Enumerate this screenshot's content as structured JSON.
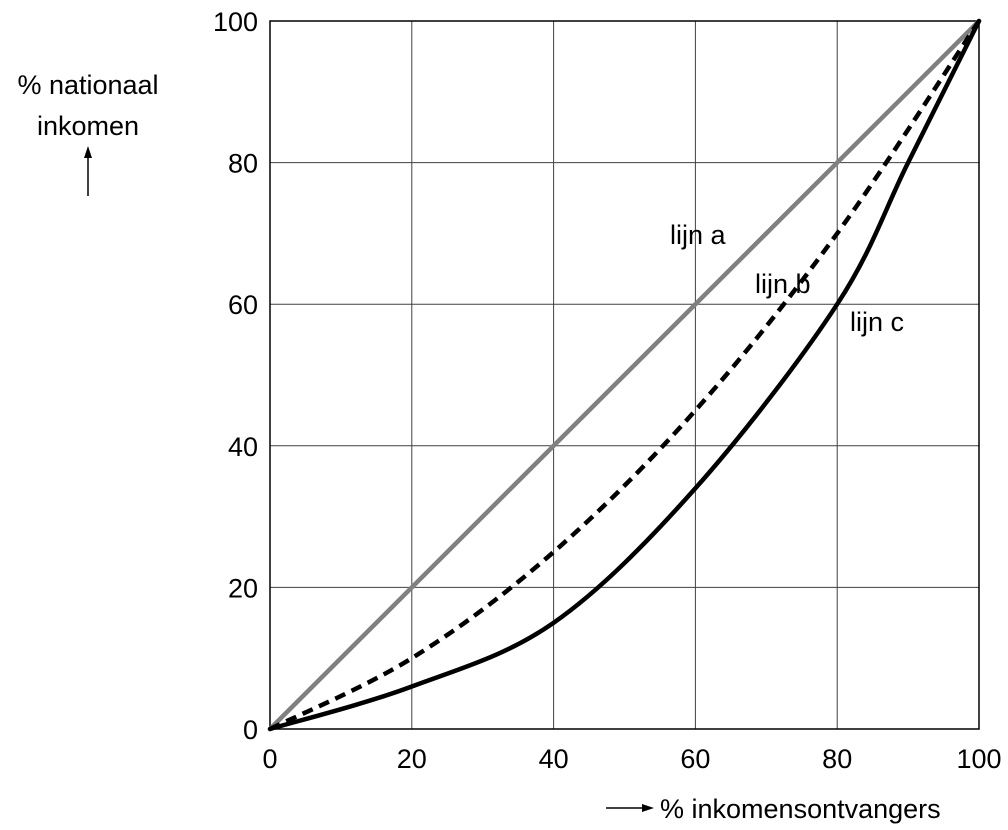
{
  "chart_data": {
    "type": "line",
    "title": "",
    "ylabel_lines": [
      "% nationaal",
      "inkomen"
    ],
    "xlabel": "% inkomensontvangers",
    "xlim": [
      0,
      100
    ],
    "ylim": [
      0,
      100
    ],
    "xticks": [
      0,
      20,
      40,
      60,
      80,
      100
    ],
    "yticks": [
      0,
      20,
      40,
      60,
      80,
      100
    ],
    "grid": true,
    "series": [
      {
        "name": "lijn a",
        "color": "#808080",
        "style": "solid",
        "x": [
          0,
          100
        ],
        "y": [
          0,
          100
        ]
      },
      {
        "name": "lijn b",
        "color": "#000000",
        "style": "dashed",
        "x": [
          0,
          20,
          40,
          60,
          80,
          100
        ],
        "y": [
          0,
          10,
          25,
          45,
          70,
          100
        ]
      },
      {
        "name": "lijn c",
        "color": "#000000",
        "style": "solid",
        "x": [
          0,
          20,
          40,
          60,
          80,
          90,
          100
        ],
        "y": [
          0,
          6,
          15,
          34,
          60,
          80,
          100
        ]
      }
    ]
  }
}
